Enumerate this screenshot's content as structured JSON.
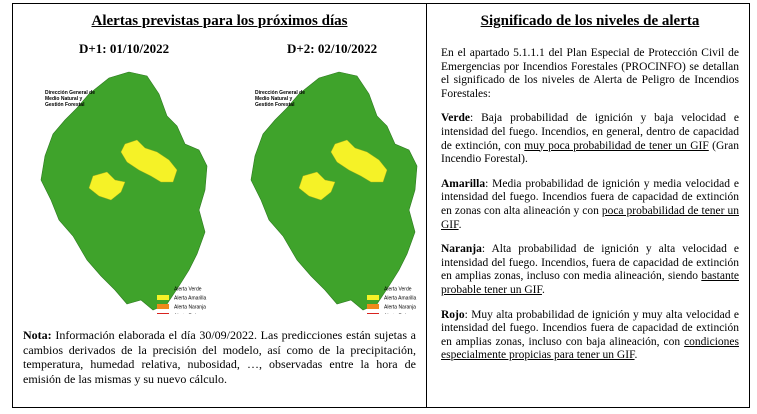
{
  "left": {
    "title": "Alertas previstas para los próximos días",
    "maps": [
      {
        "label": "D+1: 01/10/2022",
        "org": [
          "Dirección General de",
          "Medio Natural y",
          "Gestión Forestal"
        ]
      },
      {
        "label": "D+2: 02/10/2022",
        "org": [
          "Dirección General de",
          "Medio Natural y",
          "Gestión Forestal"
        ]
      }
    ],
    "legend": [
      {
        "label": "Alerta Verde",
        "color": "#3fa32b"
      },
      {
        "label": "Alerta Amarilla",
        "color": "#f5f227"
      },
      {
        "label": "Alerta Naranja",
        "color": "#f08a1c"
      },
      {
        "label": "Alerta Roja",
        "color": "#d8231f"
      }
    ],
    "note": {
      "label": "Nota:",
      "text": " Información elaborada el día 30/09/2022. Las predicciones están sujetas a cambios derivados de la precisión del modelo, así como de la precipitación, temperatura, humedad relativa, nubosidad, …, observadas entre la hora de emisión de las mismas y su nuevo cálculo."
    }
  },
  "right": {
    "title": "Significado de los niveles de alerta",
    "intro": "En el apartado 5.1.1.1 del Plan Especial de Protección Civil de Emergencias por Incendios Forestales (PROCINFO) se detallan el significado de los niveles de Alerta de Peligro de Incendios Forestales:",
    "levels": [
      {
        "name": "Verde",
        "before": ": Baja probabilidad de ignición y baja velocidad e intensidad del fuego. Incendios, en general, dentro de capacidad de extinción, con ",
        "underlined": "muy poca probabilidad de tener un GIF",
        "after": " (Gran Incendio Forestal)."
      },
      {
        "name": "Amarilla",
        "before": ": Media probabilidad de ignición y media velocidad e intensidad del fuego. Incendios fuera de capacidad de extinción en zonas con alta alineación y con ",
        "underlined": "poca probabilidad de tener un GIF",
        "after": "."
      },
      {
        "name": "Naranja",
        "before": ": Alta probabilidad de ignición y alta velocidad e intensidad del fuego. Incendios, fuera de capacidad de extinción en amplias zonas, incluso con media alineación, siendo ",
        "underlined": "bastante probable tener un GIF",
        "after": "."
      },
      {
        "name": "Rojo",
        "before": ": Muy alta probabilidad de ignición y muy alta velocidad e intensidad del fuego. Incendios fuera de capacidad de extinción en amplias zonas, incluso con baja alineación, con ",
        "underlined": "condiciones especialmente propicias para tener un GIF",
        "after": "."
      }
    ]
  }
}
